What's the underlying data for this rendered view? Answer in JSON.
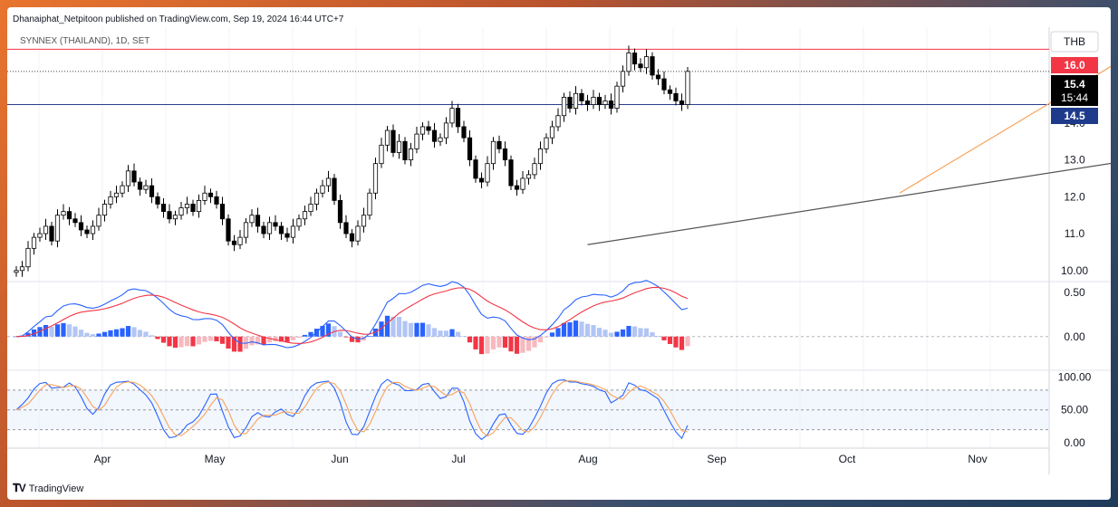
{
  "header": {
    "published_by": "Dhanaiphat_Netpitoon published on TradingView.com, Sep 19, 2024 16:44 UTC+7"
  },
  "brand": {
    "name": "TradingView",
    "icon": "tradingview-logo-icon"
  },
  "colors": {
    "up_candle": "#ffffff",
    "down_candle": "#000000",
    "resistance": "#f23645",
    "support": "#2a3f8f",
    "trend_orange": "#f7a35c",
    "trend_gray": "#555555",
    "macd_line": "#2962ff",
    "signal_line": "#f23645",
    "hist_pos_strong": "#2962ff",
    "hist_pos_weak": "#b2c5f5",
    "hist_neg_strong": "#f23645",
    "hist_neg_weak": "#f7b9be",
    "stoch_k": "#2962ff",
    "stoch_d": "#f7a35c"
  },
  "chart_data": {
    "type": "candlestick",
    "title": "SYNNEX (THAILAND), 1D, SET",
    "currency": "THB",
    "x_ticks": [
      "Apr",
      "May",
      "Jun",
      "Jul",
      "Aug",
      "Sep",
      "Oct",
      "Nov"
    ],
    "price_axis": {
      "ylim": [
        9.7,
        16.6
      ],
      "ticks": [
        "10.00",
        "11.0",
        "12.0",
        "13.0",
        "14.0"
      ]
    },
    "price_labels": {
      "resistance": "16.0",
      "last_price": "15.4",
      "countdown": "15:44",
      "support": "14.5"
    },
    "levels": {
      "resistance": 16.0,
      "last_close": 15.4,
      "support": 14.5
    },
    "trendlines": [
      {
        "name": "orange",
        "from": [
          150,
          12.1
        ],
        "to": [
          197,
          16.6
        ]
      },
      {
        "name": "gray",
        "from": [
          97,
          10.7
        ],
        "to": [
          228,
          13.95
        ]
      }
    ],
    "closes": [
      10.0,
      10.1,
      10.6,
      10.9,
      11.0,
      11.2,
      10.8,
      11.5,
      11.6,
      11.4,
      11.3,
      11.1,
      11.0,
      11.2,
      11.5,
      11.8,
      12.0,
      12.1,
      12.3,
      12.7,
      12.4,
      12.2,
      12.3,
      12.0,
      11.8,
      11.6,
      11.4,
      11.5,
      11.7,
      11.8,
      11.6,
      11.9,
      12.1,
      12.0,
      11.8,
      11.4,
      10.8,
      10.7,
      10.9,
      11.3,
      11.5,
      11.2,
      11.0,
      11.3,
      11.2,
      11.0,
      10.9,
      11.2,
      11.4,
      11.6,
      11.8,
      12.1,
      12.3,
      12.5,
      11.9,
      11.3,
      11.0,
      10.8,
      11.2,
      11.5,
      12.1,
      12.9,
      13.4,
      13.8,
      13.2,
      13.5,
      13.0,
      13.3,
      13.7,
      13.9,
      13.8,
      13.5,
      13.6,
      14.0,
      14.4,
      13.9,
      13.6,
      13.0,
      12.5,
      12.4,
      12.9,
      13.5,
      13.3,
      13.0,
      12.3,
      12.2,
      12.5,
      12.6,
      12.9,
      13.3,
      13.6,
      13.9,
      14.2,
      14.7,
      14.4,
      14.8,
      14.6,
      14.5,
      14.7,
      14.5,
      14.6,
      14.4,
      15.0,
      15.4,
      15.9,
      15.6,
      15.5,
      15.8,
      15.3,
      15.2,
      14.9,
      14.8,
      14.6,
      14.5,
      15.4
    ],
    "macd_axis": {
      "ylim": [
        -0.38,
        0.62
      ],
      "ticks": [
        "0.50",
        "0.00"
      ]
    },
    "stoch_axis": {
      "ylim": [
        -8,
        110
      ],
      "ticks": [
        "100.00",
        "50.00",
        "0.00"
      ],
      "bands": [
        80,
        50,
        20
      ]
    }
  }
}
